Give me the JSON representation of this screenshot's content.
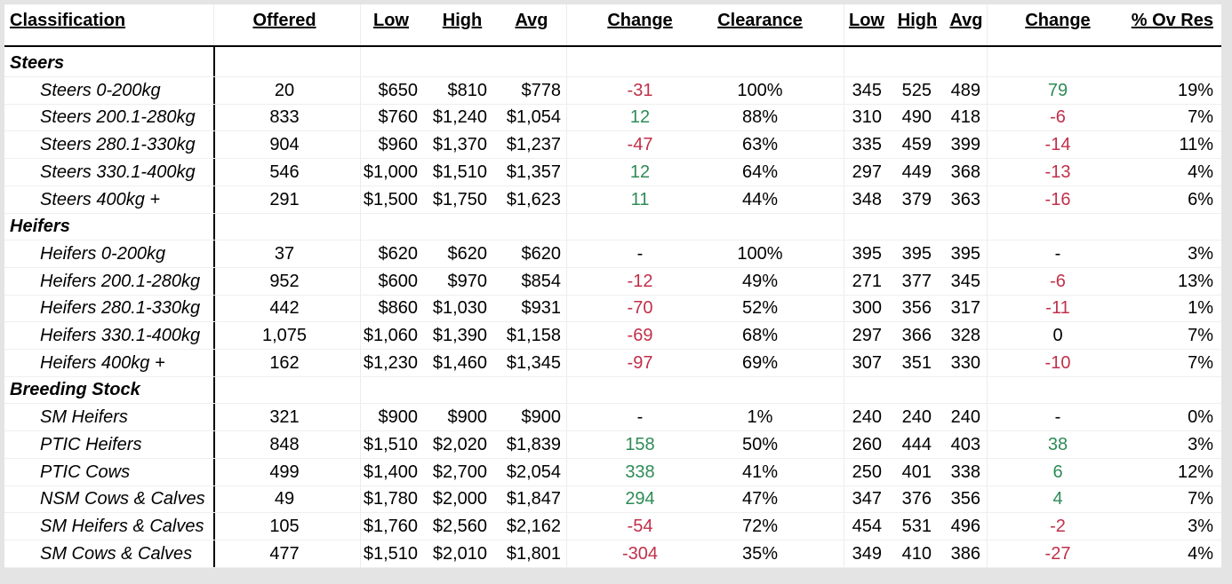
{
  "headers": {
    "classification": "Classification",
    "offered": "Offered",
    "low": "Low",
    "high": "High",
    "avg": "Avg",
    "change": "Change",
    "clearance": "Clearance",
    "low2": "Low",
    "high2": "High",
    "avg2": "Avg",
    "change2": "Change",
    "ovres": "% Ov Res"
  },
  "colors": {
    "positive": "#2e8b57",
    "negative": "#c0304a"
  },
  "rows": [
    {
      "type": "section",
      "label": "Steers"
    },
    {
      "type": "data",
      "name": "Steers 0-200kg",
      "offered": "20",
      "low": "$650",
      "high": "$810",
      "avg": "$778",
      "change": "-31",
      "change_dir": "neg",
      "clearance": "100%",
      "low2": "345",
      "high2": "525",
      "avg2": "489",
      "change2": "79",
      "change2_dir": "pos",
      "ovres": "19%"
    },
    {
      "type": "data",
      "name": "Steers 200.1-280kg",
      "offered": "833",
      "low": "$760",
      "high": "$1,240",
      "avg": "$1,054",
      "change": "12",
      "change_dir": "pos",
      "clearance": "88%",
      "low2": "310",
      "high2": "490",
      "avg2": "418",
      "change2": "-6",
      "change2_dir": "neg",
      "ovres": "7%"
    },
    {
      "type": "data",
      "name": "Steers 280.1-330kg",
      "offered": "904",
      "low": "$960",
      "high": "$1,370",
      "avg": "$1,237",
      "change": "-47",
      "change_dir": "neg",
      "clearance": "63%",
      "low2": "335",
      "high2": "459",
      "avg2": "399",
      "change2": "-14",
      "change2_dir": "neg",
      "ovres": "11%"
    },
    {
      "type": "data",
      "name": "Steers 330.1-400kg",
      "offered": "546",
      "low": "$1,000",
      "high": "$1,510",
      "avg": "$1,357",
      "change": "12",
      "change_dir": "pos",
      "clearance": "64%",
      "low2": "297",
      "high2": "449",
      "avg2": "368",
      "change2": "-13",
      "change2_dir": "neg",
      "ovres": "4%"
    },
    {
      "type": "data",
      "name": "Steers 400kg +",
      "offered": "291",
      "low": "$1,500",
      "high": "$1,750",
      "avg": "$1,623",
      "change": "11",
      "change_dir": "pos",
      "clearance": "44%",
      "low2": "348",
      "high2": "379",
      "avg2": "363",
      "change2": "-16",
      "change2_dir": "neg",
      "ovres": "6%"
    },
    {
      "type": "section",
      "label": "Heifers"
    },
    {
      "type": "data",
      "name": "Heifers 0-200kg",
      "offered": "37",
      "low": "$620",
      "high": "$620",
      "avg": "$620",
      "change": "-",
      "change_dir": "neu",
      "clearance": "100%",
      "low2": "395",
      "high2": "395",
      "avg2": "395",
      "change2": "-",
      "change2_dir": "neu",
      "ovres": "3%"
    },
    {
      "type": "data",
      "name": "Heifers 200.1-280kg",
      "offered": "952",
      "low": "$600",
      "high": "$970",
      "avg": "$854",
      "change": "-12",
      "change_dir": "neg",
      "clearance": "49%",
      "low2": "271",
      "high2": "377",
      "avg2": "345",
      "change2": "-6",
      "change2_dir": "neg",
      "ovres": "13%"
    },
    {
      "type": "data",
      "name": "Heifers 280.1-330kg",
      "offered": "442",
      "low": "$860",
      "high": "$1,030",
      "avg": "$931",
      "change": "-70",
      "change_dir": "neg",
      "clearance": "52%",
      "low2": "300",
      "high2": "356",
      "avg2": "317",
      "change2": "-11",
      "change2_dir": "neg",
      "ovres": "1%"
    },
    {
      "type": "data",
      "name": "Heifers 330.1-400kg",
      "offered": "1,075",
      "low": "$1,060",
      "high": "$1,390",
      "avg": "$1,158",
      "change": "-69",
      "change_dir": "neg",
      "clearance": "68%",
      "low2": "297",
      "high2": "366",
      "avg2": "328",
      "change2": "0",
      "change2_dir": "neu",
      "ovres": "7%"
    },
    {
      "type": "data",
      "name": "Heifers 400kg +",
      "offered": "162",
      "low": "$1,230",
      "high": "$1,460",
      "avg": "$1,345",
      "change": "-97",
      "change_dir": "neg",
      "clearance": "69%",
      "low2": "307",
      "high2": "351",
      "avg2": "330",
      "change2": "-10",
      "change2_dir": "neg",
      "ovres": "7%"
    },
    {
      "type": "section",
      "label": "Breeding Stock"
    },
    {
      "type": "data",
      "name": "SM Heifers",
      "offered": "321",
      "low": "$900",
      "high": "$900",
      "avg": "$900",
      "change": "-",
      "change_dir": "neu",
      "clearance": "1%",
      "low2": "240",
      "high2": "240",
      "avg2": "240",
      "change2": "-",
      "change2_dir": "neu",
      "ovres": "0%"
    },
    {
      "type": "data",
      "name": "PTIC Heifers",
      "offered": "848",
      "low": "$1,510",
      "high": "$2,020",
      "avg": "$1,839",
      "change": "158",
      "change_dir": "pos",
      "clearance": "50%",
      "low2": "260",
      "high2": "444",
      "avg2": "403",
      "change2": "38",
      "change2_dir": "pos",
      "ovres": "3%"
    },
    {
      "type": "data",
      "name": "PTIC Cows",
      "offered": "499",
      "low": "$1,400",
      "high": "$2,700",
      "avg": "$2,054",
      "change": "338",
      "change_dir": "pos",
      "clearance": "41%",
      "low2": "250",
      "high2": "401",
      "avg2": "338",
      "change2": "6",
      "change2_dir": "pos",
      "ovres": "12%"
    },
    {
      "type": "data",
      "name": "NSM Cows & Calves",
      "offered": "49",
      "low": "$1,780",
      "high": "$2,000",
      "avg": "$1,847",
      "change": "294",
      "change_dir": "pos",
      "clearance": "47%",
      "low2": "347",
      "high2": "376",
      "avg2": "356",
      "change2": "4",
      "change2_dir": "pos",
      "ovres": "7%"
    },
    {
      "type": "data",
      "name": "SM Heifers & Calves",
      "offered": "105",
      "low": "$1,760",
      "high": "$2,560",
      "avg": "$2,162",
      "change": "-54",
      "change_dir": "neg",
      "clearance": "72%",
      "low2": "454",
      "high2": "531",
      "avg2": "496",
      "change2": "-2",
      "change2_dir": "neg",
      "ovres": "3%"
    },
    {
      "type": "data",
      "name": "SM Cows & Calves",
      "offered": "477",
      "low": "$1,510",
      "high": "$2,010",
      "avg": "$1,801",
      "change": "-304",
      "change_dir": "neg",
      "clearance": "35%",
      "low2": "349",
      "high2": "410",
      "avg2": "386",
      "change2": "-27",
      "change2_dir": "neg",
      "ovres": "4%"
    }
  ]
}
